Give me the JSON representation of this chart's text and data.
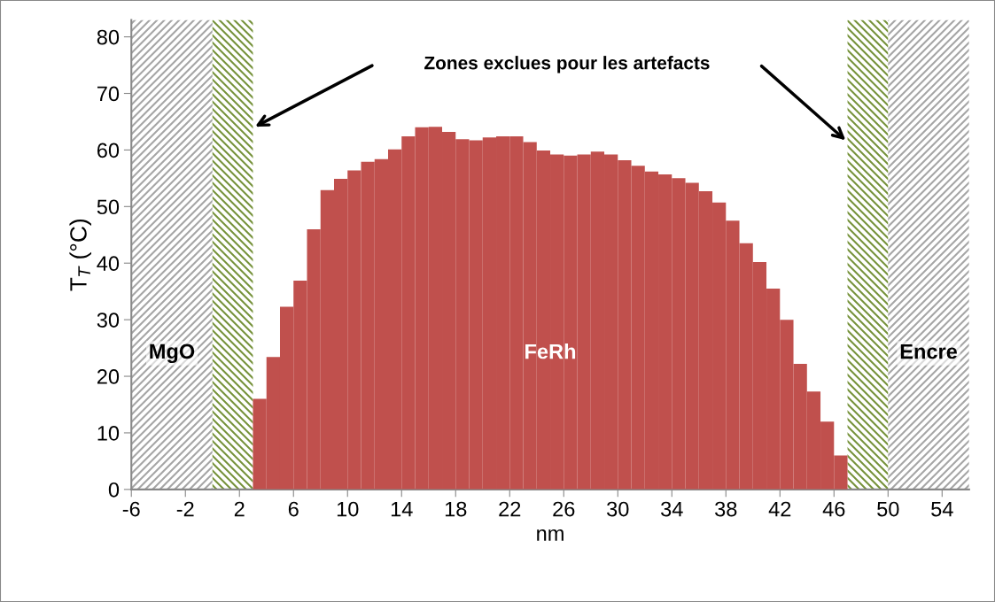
{
  "chart_data": {
    "type": "histogram",
    "xlabel": "nm",
    "ylabel": "T$_{T}$ (°C)",
    "bins": [
      3,
      4,
      5,
      6,
      7,
      8,
      9,
      10,
      11,
      12,
      13,
      14,
      15,
      16,
      17,
      18,
      19,
      20,
      21,
      22,
      23,
      24,
      25,
      26,
      27,
      28,
      29,
      30,
      31,
      32,
      33,
      34,
      35,
      36,
      37,
      38,
      39,
      40,
      41,
      42,
      43,
      44,
      45,
      46,
      47
    ],
    "series": [
      {
        "name": "FeRh",
        "color": "#c0504d",
        "values": [
          16.0,
          23.4,
          32.3,
          36.9,
          46.0,
          52.9,
          54.9,
          56.4,
          57.9,
          58.4,
          60.1,
          62.4,
          64.0,
          64.1,
          63.2,
          61.9,
          61.7,
          62.2,
          62.4,
          62.4,
          61.4,
          59.9,
          59.2,
          59.0,
          59.2,
          59.7,
          59.2,
          58.2,
          57.2,
          56.2,
          55.7,
          55.0,
          54.2,
          52.7,
          50.7,
          47.5,
          43.5,
          40.2,
          35.5,
          30.0,
          22.2,
          17.3,
          12.0,
          6.0
        ]
      }
    ],
    "xlim": [
      -6,
      56
    ],
    "xticks": [
      -6,
      -2,
      2,
      6,
      10,
      14,
      18,
      22,
      26,
      30,
      34,
      38,
      42,
      46,
      50,
      54
    ],
    "ylim": [
      0,
      83
    ],
    "yticks": [
      0,
      10,
      20,
      30,
      40,
      50,
      60,
      70,
      80
    ],
    "bands": [
      {
        "axis": "x",
        "from": -6,
        "to": 0,
        "label": "MgO",
        "color": "#a6a6a6"
      },
      {
        "axis": "x",
        "from": 0,
        "to": 3,
        "label": null,
        "color": "#77933c"
      },
      {
        "axis": "x",
        "from": 47,
        "to": 50,
        "label": null,
        "color": "#77933c"
      },
      {
        "axis": "x",
        "from": 50,
        "to": 56,
        "label": "Encre",
        "color": "#a6a6a6"
      }
    ],
    "annotations": [
      "Zones exclues pour les artefacts"
    ],
    "grid": false,
    "legend": false
  }
}
